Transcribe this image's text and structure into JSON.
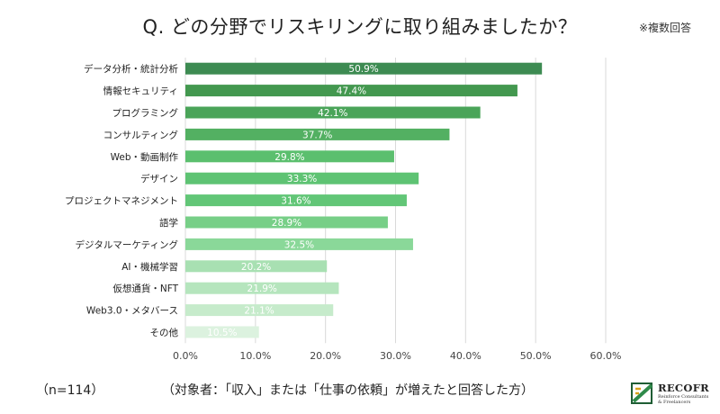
{
  "header": {
    "title": "Q. どの分野でリスキリングに取り組みましたか？",
    "note": "※複数回答"
  },
  "footer": {
    "sample": "（n=114）",
    "condition": "（対象者：「収入」または「仕事の依頼」が増えたと回答した方）"
  },
  "logo": {
    "name": "RECOFR",
    "tagline": "Reinforce Consultants & Freelancers"
  },
  "chart_data": {
    "type": "bar",
    "orientation": "horizontal",
    "categories": [
      "データ分析・統計分析",
      "情報セキュリティ",
      "プログラミング",
      "コンサルティング",
      "Web・動画制作",
      "デザイン",
      "プロジェクトマネジメント",
      "語学",
      "デジタルマーケティング",
      "AI・機械学習",
      "仮想通貨・NFT",
      "Web3.0・メタバース",
      "その他"
    ],
    "values": [
      50.9,
      47.4,
      42.1,
      37.7,
      29.8,
      33.3,
      31.6,
      28.9,
      32.5,
      20.2,
      21.9,
      21.1,
      10.5
    ],
    "data_labels": [
      "50.9%",
      "47.4%",
      "42.1%",
      "37.7%",
      "29.8%",
      "33.3%",
      "31.6%",
      "28.9%",
      "32.5%",
      "20.2%",
      "21.9%",
      "21.1%",
      "10.5%"
    ],
    "colors": [
      "#3d8b52",
      "#43984f",
      "#4aa459",
      "#53b062",
      "#5bbf6e",
      "#5ec373",
      "#62c677",
      "#77cf87",
      "#8ad899",
      "#a8e0b2",
      "#b5e5bd",
      "#c6ebcb",
      "#dcf2df"
    ],
    "xlim": [
      0,
      60
    ],
    "xticks": [
      "0.0%",
      "10.0%",
      "20.0%",
      "30.0%",
      "40.0%",
      "50.0%",
      "60.0%"
    ],
    "xtick_values": [
      0,
      10,
      20,
      30,
      40,
      50,
      60
    ],
    "grid": true,
    "title": "Q. どの分野でリスキリングに取り組みましたか？",
    "xlabel": "",
    "ylabel": ""
  }
}
